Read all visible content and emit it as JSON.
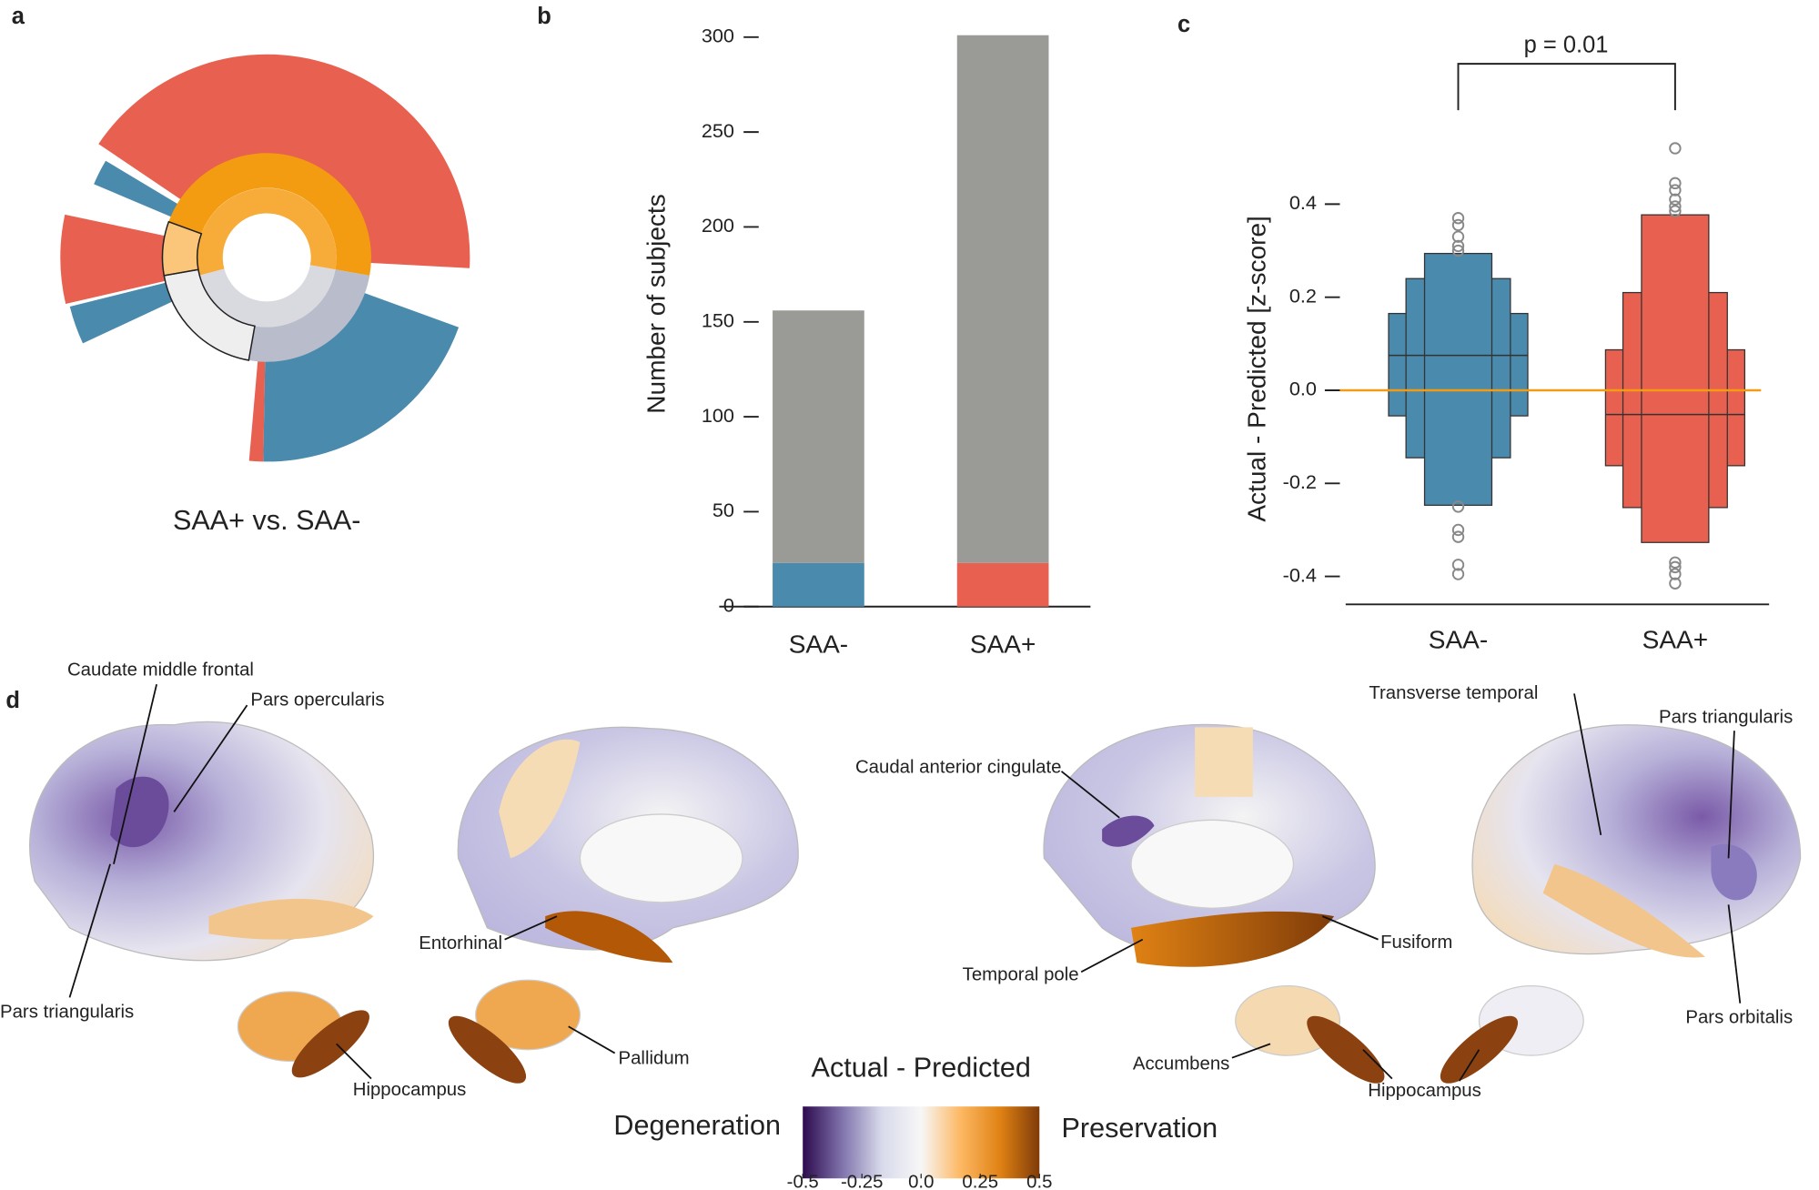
{
  "chart_data": [
    {
      "type": "sunburst",
      "panel": "a",
      "title": "SAA+ vs. SAA-"
    },
    {
      "type": "bar",
      "panel": "b",
      "stacked": true,
      "categories": [
        "SAA-",
        "SAA+"
      ],
      "series": [
        {
          "colors": [
            "#4a8aad",
            "#e8604f"
          ],
          "values": [
            23,
            23
          ]
        },
        {
          "color": "#9a9a96",
          "values": [
            133,
            278
          ]
        }
      ],
      "ylabel": "Number of subjects",
      "ylim": [
        0,
        310
      ],
      "yticks": [
        0,
        50,
        100,
        150,
        200,
        250,
        300
      ]
    },
    {
      "type": "boxen",
      "panel": "c",
      "categories": [
        "SAA-",
        "SAA+"
      ],
      "groups": [
        {
          "color": "#4a8aad",
          "median": 0.075,
          "boxes": [
            [
              -0.055,
              0.165
            ],
            [
              -0.145,
              0.24
            ],
            [
              -0.247,
              0.294
            ]
          ],
          "outliers": [
            0.37,
            0.355,
            0.33,
            0.31,
            0.3,
            -0.25,
            -0.3,
            -0.315,
            -0.375,
            -0.395
          ]
        },
        {
          "color": "#e8604f",
          "median": -0.052,
          "boxes": [
            [
              -0.162,
              0.087
            ],
            [
              -0.252,
              0.21
            ],
            [
              -0.327,
              0.377
            ]
          ],
          "outliers": [
            0.52,
            0.445,
            0.43,
            0.41,
            0.395,
            0.385,
            -0.37,
            -0.38,
            -0.395,
            -0.415
          ]
        }
      ],
      "ylabel": "Actual - Predicted [z-score]",
      "ylim": [
        -0.46,
        0.55
      ],
      "yticks": [
        -0.4,
        -0.2,
        {
          "value": 0,
          "label": "0.0"
        },
        0.2,
        0.4
      ],
      "reference_line": 0,
      "reference_color": "#f39c12",
      "annotation": "p = 0.01"
    },
    {
      "type": "brain",
      "panel": "d",
      "regions": [
        "Caudate middle frontal",
        "Pars opercularis",
        "Pars triangularis",
        "Entorhinal",
        "Hippocampus",
        "Pallidum",
        "Caudal anterior cingulate",
        "Transverse temporal",
        "Pars triangularis",
        "Fusiform",
        "Temporal pole",
        "Accumbens",
        "Hippocampus",
        "Pars orbitalis"
      ],
      "colorbar": {
        "title": "Actual - Predicted",
        "left_label": "Degeneration",
        "right_label": "Preservation",
        "xlim": [
          -0.5,
          0.5
        ],
        "xticks": [
          -0.5,
          -0.25,
          {
            "value": 0,
            "label": "0.0"
          },
          0.25,
          0.5
        ],
        "colors": [
          "#2d0a4e",
          "#8073ac",
          "#d8daeb",
          "#f7f7f7",
          "#fdb863",
          "#e08214",
          "#7f3b08"
        ]
      }
    }
  ]
}
